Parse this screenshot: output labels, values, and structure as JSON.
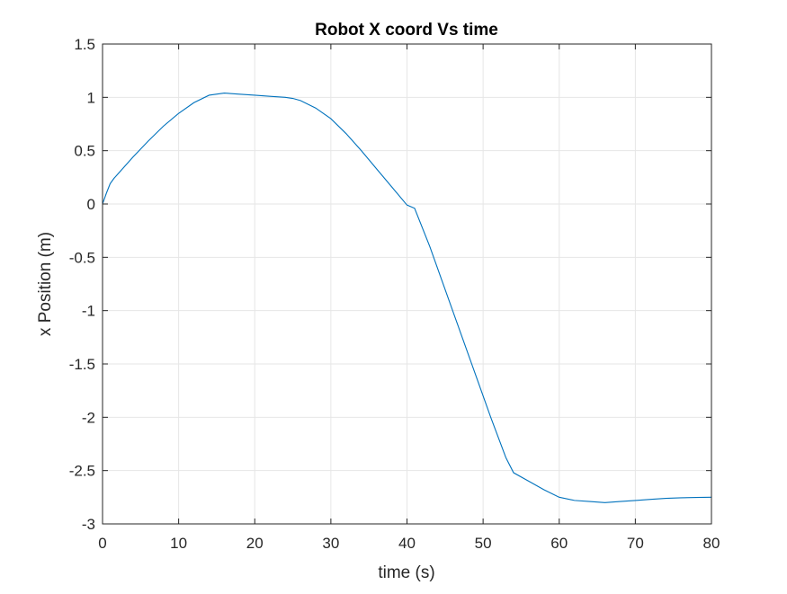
{
  "chart_data": {
    "type": "line",
    "title": "Robot X coord Vs time",
    "xlabel": "time (s)",
    "ylabel": "x Position (m)",
    "xlim": [
      0,
      80
    ],
    "ylim": [
      -3,
      1.5
    ],
    "xticks": [
      0,
      10,
      20,
      30,
      40,
      50,
      60,
      70,
      80
    ],
    "yticks": [
      -3,
      -2.5,
      -2,
      -1.5,
      -1,
      -0.5,
      0,
      0.5,
      1,
      1.5
    ],
    "xtick_labels": [
      "0",
      "10",
      "20",
      "30",
      "40",
      "50",
      "60",
      "70",
      "80"
    ],
    "ytick_labels": [
      "-3",
      "-2.5",
      "-2",
      "-1.5",
      "-1",
      "-0.5",
      "0",
      "0.5",
      "1",
      "1.5"
    ],
    "grid": true,
    "colors": {
      "series": "#0072BD",
      "grid": "#e6e6e6",
      "axis": "#262626"
    },
    "series": [
      {
        "x": [
          0,
          0.5,
          1,
          1.5,
          2,
          4,
          6,
          8,
          10,
          12,
          14,
          16,
          18,
          20,
          22,
          24,
          25,
          26,
          28,
          30,
          32,
          34,
          36,
          38,
          40,
          41,
          43,
          45,
          47,
          49,
          51,
          53,
          54,
          56,
          58,
          60,
          62,
          64,
          66,
          68,
          70,
          72,
          74,
          76,
          78,
          80
        ],
        "y": [
          0,
          0.1,
          0.19,
          0.24,
          0.28,
          0.44,
          0.59,
          0.73,
          0.85,
          0.95,
          1.02,
          1.04,
          1.03,
          1.02,
          1.01,
          1.0,
          0.99,
          0.97,
          0.9,
          0.8,
          0.66,
          0.5,
          0.33,
          0.16,
          -0.01,
          -0.04,
          -0.4,
          -0.8,
          -1.2,
          -1.6,
          -2.0,
          -2.38,
          -2.52,
          -2.6,
          -2.68,
          -2.75,
          -2.78,
          -2.79,
          -2.8,
          -2.79,
          -2.78,
          -2.77,
          -2.76,
          -2.755,
          -2.752,
          -2.75
        ]
      }
    ]
  }
}
